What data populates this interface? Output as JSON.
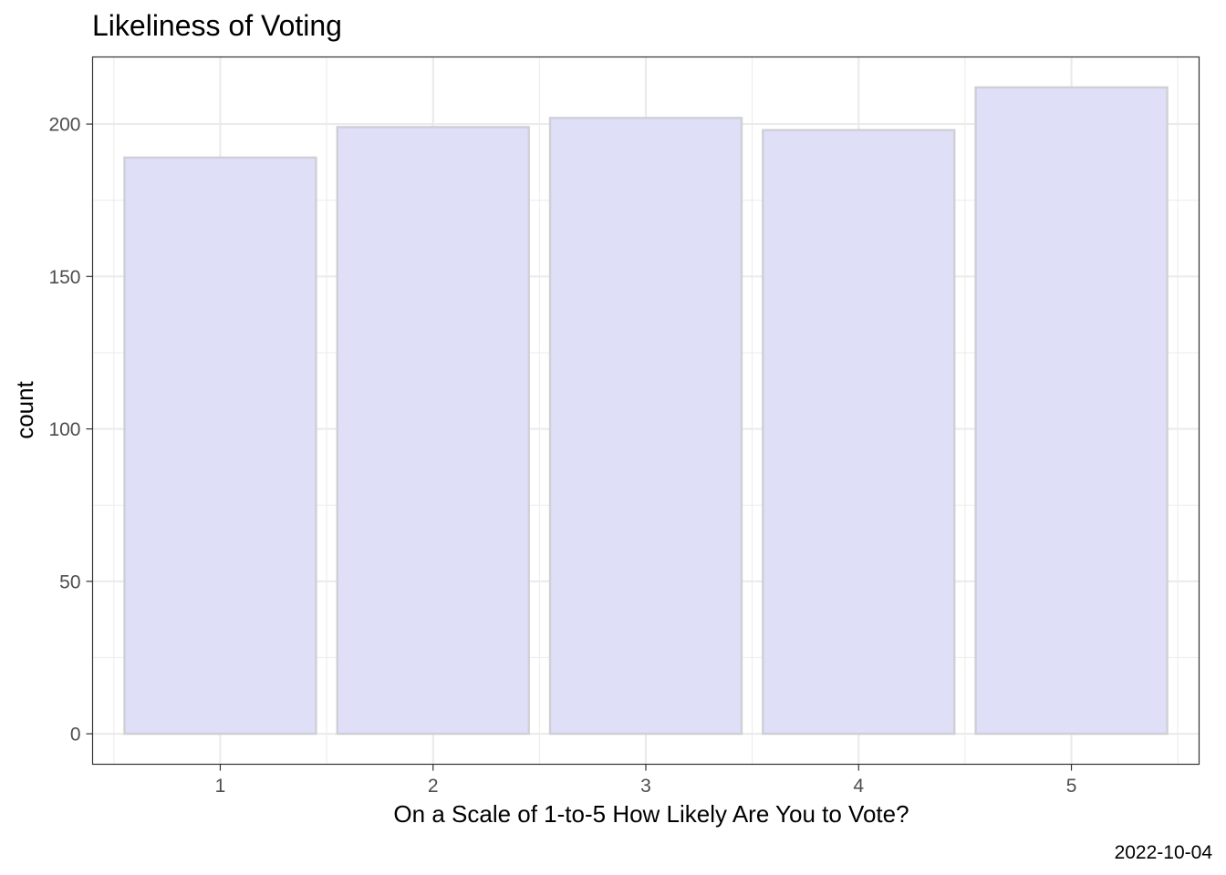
{
  "chart_data": {
    "type": "bar",
    "title": "Likeliness of Voting",
    "xlabel": "On a Scale of 1-to-5 How Likely Are You to Vote?",
    "ylabel": "count",
    "caption": "2022-10-04",
    "categories": [
      "1",
      "2",
      "3",
      "4",
      "5"
    ],
    "values": [
      189,
      199,
      202,
      198,
      212
    ],
    "ylim": [
      -10,
      222
    ],
    "yticks": [
      0,
      50,
      100,
      150,
      200
    ],
    "grid": true,
    "colors": {
      "bar_fill": "#dfdff8",
      "bar_stroke": "#cfcfd6",
      "grid": "#ebebeb",
      "panel_border": "#333333"
    }
  }
}
